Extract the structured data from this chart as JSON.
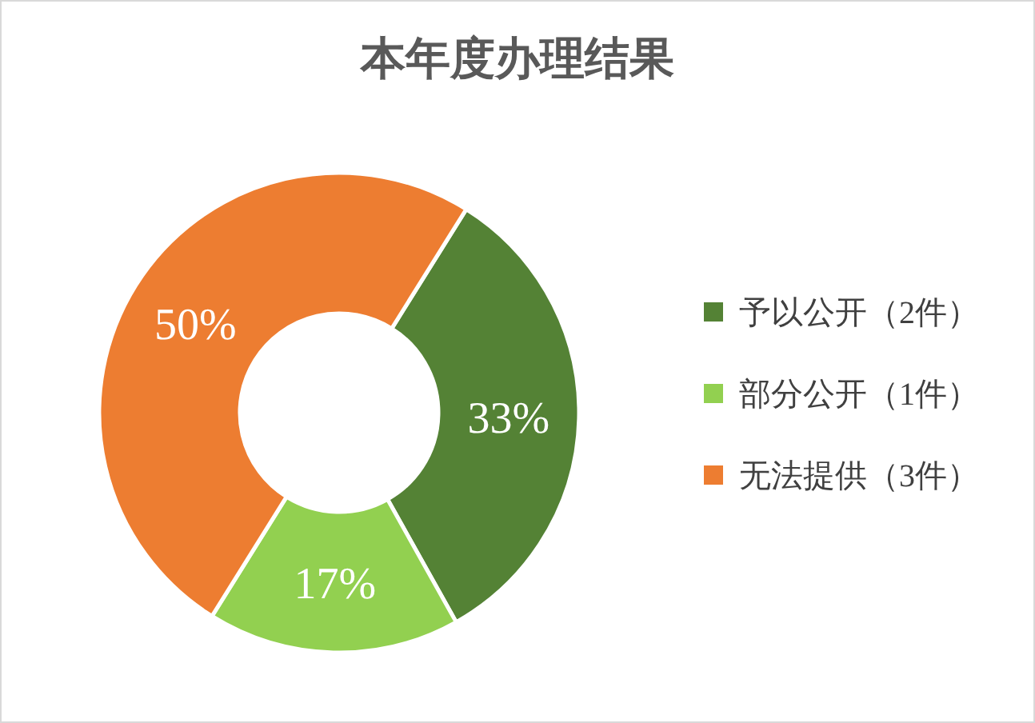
{
  "chart_data": {
    "type": "donut",
    "title": "本年度办理结果",
    "categories": [
      "予以公开（2件）",
      "部分公开（1件）",
      "无法提供（3件）"
    ],
    "values": [
      33,
      17,
      50
    ],
    "colors": [
      "#548235",
      "#92d050",
      "#ed7d31"
    ],
    "value_labels": [
      "33%",
      "17%",
      "50%"
    ],
    "legend": "right"
  }
}
